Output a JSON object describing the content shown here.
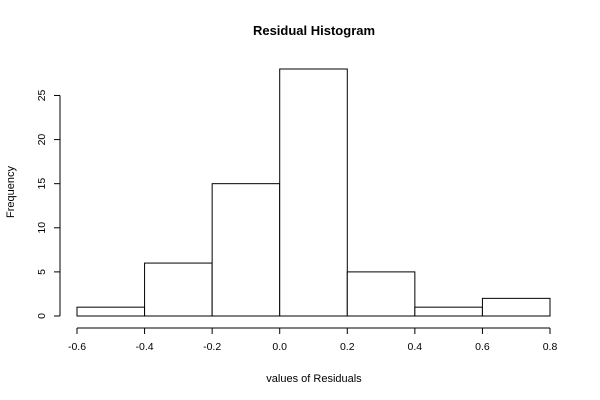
{
  "chart_data": {
    "type": "bar",
    "title": "Residual Histogram",
    "xlabel": "values of Residuals",
    "ylabel": "Frequency",
    "bins": [
      {
        "from": -0.6,
        "to": -0.4,
        "count": 1
      },
      {
        "from": -0.4,
        "to": -0.2,
        "count": 6
      },
      {
        "from": -0.2,
        "to": 0.0,
        "count": 15
      },
      {
        "from": 0.0,
        "to": 0.2,
        "count": 28
      },
      {
        "from": 0.2,
        "to": 0.4,
        "count": 5
      },
      {
        "from": 0.4,
        "to": 0.6,
        "count": 1
      },
      {
        "from": 0.6,
        "to": 0.8,
        "count": 2
      }
    ],
    "xlim": [
      -0.6,
      0.8
    ],
    "ylim": [
      0,
      28
    ],
    "x_ticks": [
      -0.6,
      -0.4,
      -0.2,
      0.0,
      0.2,
      0.4,
      0.6,
      0.8
    ],
    "x_tick_labels": [
      "-0.6",
      "-0.4",
      "-0.2",
      "0.0",
      "0.2",
      "0.4",
      "0.6",
      "0.8"
    ],
    "y_ticks": [
      0,
      5,
      10,
      15,
      20,
      25
    ],
    "y_tick_labels": [
      "0",
      "5",
      "10",
      "15",
      "20",
      "25"
    ],
    "grid": false,
    "bar_fill": "#ffffff",
    "bar_stroke": "#000000"
  }
}
